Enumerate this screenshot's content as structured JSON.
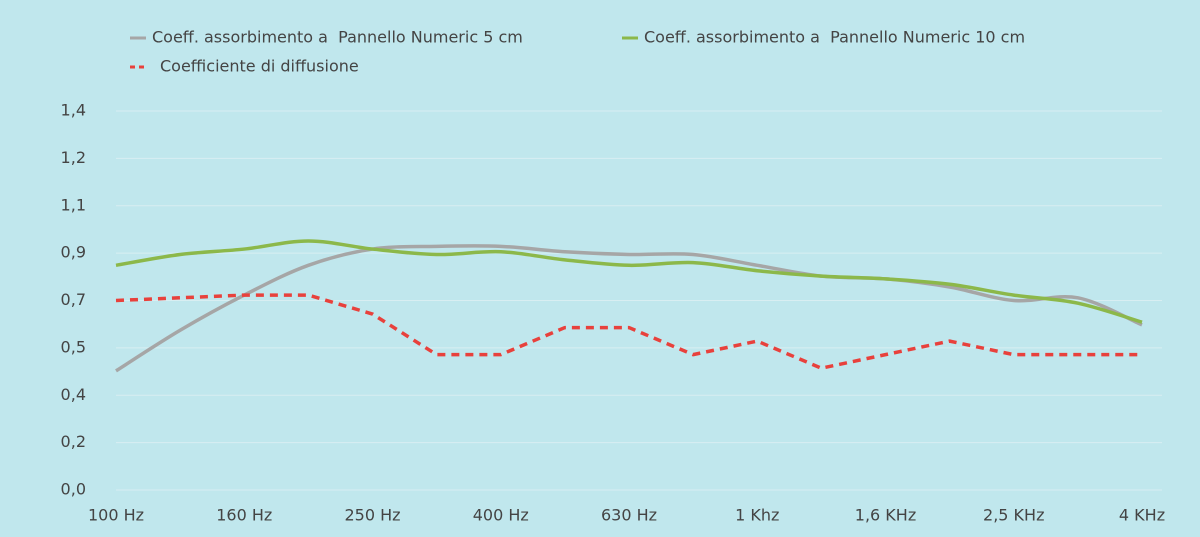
{
  "chart_data": {
    "type": "line",
    "categories": [
      "100 Hz",
      null,
      "160 Hz",
      null,
      "250 Hz",
      null,
      "400 Hz",
      null,
      "630 Hz",
      null,
      "1 Khz",
      null,
      "1,6 KHz",
      null,
      "2,5 KHz",
      null,
      "4 KHz"
    ],
    "series": [
      {
        "name": "Coeff. assorbimento a  Pannello Numeric 5 cm",
        "color": "#a6a6a6",
        "dashed": false,
        "values": [
          0.44,
          0.59,
          0.72,
          0.83,
          0.89,
          0.9,
          0.9,
          0.88,
          0.87,
          0.87,
          0.83,
          0.79,
          0.78,
          0.75,
          0.7,
          0.71,
          0.61
        ]
      },
      {
        "name": "Coeff. assorbimento a  Pannello Numeric 10 cm",
        "color": "#8cb84a",
        "dashed": false,
        "values": [
          0.83,
          0.87,
          0.89,
          0.92,
          0.89,
          0.87,
          0.88,
          0.85,
          0.83,
          0.84,
          0.81,
          0.79,
          0.78,
          0.76,
          0.72,
          0.69,
          0.62
        ]
      },
      {
        "name": "Coefficiente di diffusione",
        "color": "#e8413c",
        "dashed": true,
        "values": [
          0.7,
          0.71,
          0.72,
          0.72,
          0.65,
          0.5,
          0.5,
          0.6,
          0.6,
          0.5,
          0.55,
          0.45,
          0.5,
          0.55,
          0.5,
          0.5,
          0.5
        ]
      }
    ],
    "ylim": [
      0,
      1.4
    ],
    "yticks": [
      {
        "value": 0,
        "label": "0,0"
      },
      {
        "value": 0.175,
        "label": "0,2"
      },
      {
        "value": 0.35,
        "label": "0,4"
      },
      {
        "value": 0.525,
        "label": "0,5"
      },
      {
        "value": 0.7,
        "label": "0,7"
      },
      {
        "value": 0.875,
        "label": "0,9"
      },
      {
        "value": 1.05,
        "label": "1,1"
      },
      {
        "value": 1.225,
        "label": "1,2"
      },
      {
        "value": 1.4,
        "label": "1,4"
      }
    ],
    "grid": true,
    "legend": "top"
  }
}
